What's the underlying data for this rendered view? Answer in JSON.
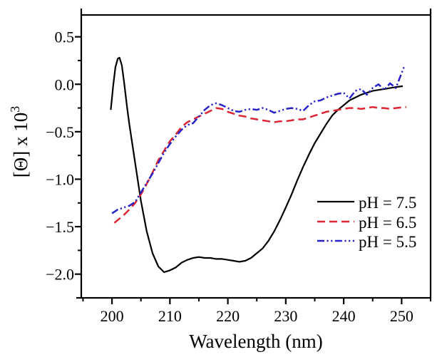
{
  "figure": {
    "background": "#ffffff"
  },
  "chart_data": {
    "type": "line",
    "title": "",
    "xlabel": "Wavelength (nm)",
    "ylabel": "[Θ] x 10³",
    "ylabel_main": "[Θ] x 10",
    "ylabel_sup": "3",
    "xlim": [
      194.7,
      255.0
    ],
    "ylim": [
      -2.25,
      0.73
    ],
    "grid": false,
    "x_major_ticks": [
      200,
      210,
      220,
      230,
      240,
      250
    ],
    "x_tick_labels": [
      "200",
      "210",
      "220",
      "230",
      "240",
      "250"
    ],
    "x_minor_ticks": [
      195,
      205,
      215,
      225,
      235,
      245,
      255
    ],
    "y_major_ticks": [
      0.5,
      0.0,
      -0.5,
      -1.0,
      -1.5,
      -2.0
    ],
    "y_tick_labels": [
      "0.5",
      "0.0",
      "−0.5",
      "−1.0",
      "−1.5",
      "−2.0"
    ],
    "y_minor_ticks": [
      0.25,
      -0.25,
      -0.75,
      -1.25,
      -1.75,
      -2.25
    ],
    "legend": {
      "position": "inside lower right"
    },
    "series": [
      {
        "name": "pH = 7.5",
        "color": "#000000",
        "line_style": "solid",
        "x": [
          199.8,
          200.2,
          200.6,
          201.0,
          201.3,
          201.7,
          202.1,
          202.6,
          203,
          204,
          205,
          206,
          207,
          208,
          209,
          210,
          211,
          212,
          213,
          214,
          215,
          216,
          217,
          218,
          219,
          220,
          221,
          222,
          223,
          224,
          225,
          226,
          227,
          228,
          229,
          230,
          231,
          232,
          233,
          234,
          235,
          236,
          237,
          238,
          239,
          240,
          241,
          242,
          243,
          244,
          245,
          246,
          247,
          248,
          249,
          250.2
        ],
        "y": [
          -0.27,
          -0.02,
          0.18,
          0.27,
          0.28,
          0.2,
          0.02,
          -0.24,
          -0.42,
          -0.83,
          -1.23,
          -1.55,
          -1.78,
          -1.92,
          -1.98,
          -1.96,
          -1.93,
          -1.88,
          -1.85,
          -1.83,
          -1.82,
          -1.83,
          -1.83,
          -1.84,
          -1.84,
          -1.85,
          -1.86,
          -1.87,
          -1.86,
          -1.83,
          -1.78,
          -1.73,
          -1.65,
          -1.55,
          -1.43,
          -1.3,
          -1.16,
          -1.01,
          -0.87,
          -0.74,
          -0.62,
          -0.52,
          -0.42,
          -0.33,
          -0.27,
          -0.22,
          -0.17,
          -0.14,
          -0.11,
          -0.09,
          -0.07,
          -0.06,
          -0.05,
          -0.04,
          -0.03,
          -0.02
        ]
      },
      {
        "name": "pH = 6.5",
        "color": "#dd2433",
        "line_style": "dashed",
        "x": [
          200.4,
          201,
          202,
          203,
          204,
          205,
          206,
          207,
          208,
          209,
          210,
          211,
          212,
          213,
          214,
          215,
          216,
          217,
          218,
          219,
          220,
          221,
          222,
          223,
          224,
          225,
          226,
          227,
          228,
          229,
          230,
          231,
          232,
          233,
          234,
          235,
          236,
          237,
          238,
          239,
          240,
          241,
          242,
          243,
          244,
          245,
          246,
          247,
          248,
          249,
          250.8
        ],
        "y": [
          -1.46,
          -1.43,
          -1.38,
          -1.32,
          -1.25,
          -1.16,
          -1.05,
          -0.93,
          -0.8,
          -0.7,
          -0.6,
          -0.53,
          -0.45,
          -0.4,
          -0.37,
          -0.34,
          -0.31,
          -0.28,
          -0.25,
          -0.26,
          -0.29,
          -0.31,
          -0.33,
          -0.34,
          -0.36,
          -0.37,
          -0.38,
          -0.39,
          -0.4,
          -0.39,
          -0.39,
          -0.38,
          -0.37,
          -0.37,
          -0.35,
          -0.33,
          -0.31,
          -0.29,
          -0.28,
          -0.27,
          -0.26,
          -0.25,
          -0.25,
          -0.26,
          -0.25,
          -0.24,
          -0.25,
          -0.25,
          -0.26,
          -0.25,
          -0.24
        ]
      },
      {
        "name": "pH = 5.5",
        "color": "#2823c8",
        "line_style": "dash-dot-dot",
        "x": [
          200,
          201,
          202,
          203,
          204,
          205,
          206,
          207,
          208,
          209,
          210,
          211,
          212,
          213,
          214,
          215,
          216,
          217,
          218,
          219,
          220,
          221,
          222,
          223,
          224,
          225,
          226,
          227,
          228,
          229,
          230,
          231,
          232,
          233,
          234,
          235,
          236,
          237,
          238,
          239,
          240,
          241,
          242,
          243,
          244,
          245,
          246,
          247,
          248,
          249,
          250.4
        ],
        "y": [
          -1.36,
          -1.32,
          -1.3,
          -1.28,
          -1.24,
          -1.14,
          -1.04,
          -0.94,
          -0.83,
          -0.72,
          -0.63,
          -0.55,
          -0.48,
          -0.43,
          -0.41,
          -0.34,
          -0.27,
          -0.22,
          -0.2,
          -0.22,
          -0.25,
          -0.28,
          -0.29,
          -0.27,
          -0.26,
          -0.27,
          -0.25,
          -0.27,
          -0.3,
          -0.28,
          -0.26,
          -0.25,
          -0.26,
          -0.28,
          -0.22,
          -0.18,
          -0.17,
          -0.14,
          -0.12,
          -0.1,
          -0.09,
          -0.15,
          -0.07,
          -0.05,
          -0.11,
          -0.04,
          0.0,
          -0.06,
          0.01,
          -0.04,
          0.18
        ]
      }
    ]
  }
}
